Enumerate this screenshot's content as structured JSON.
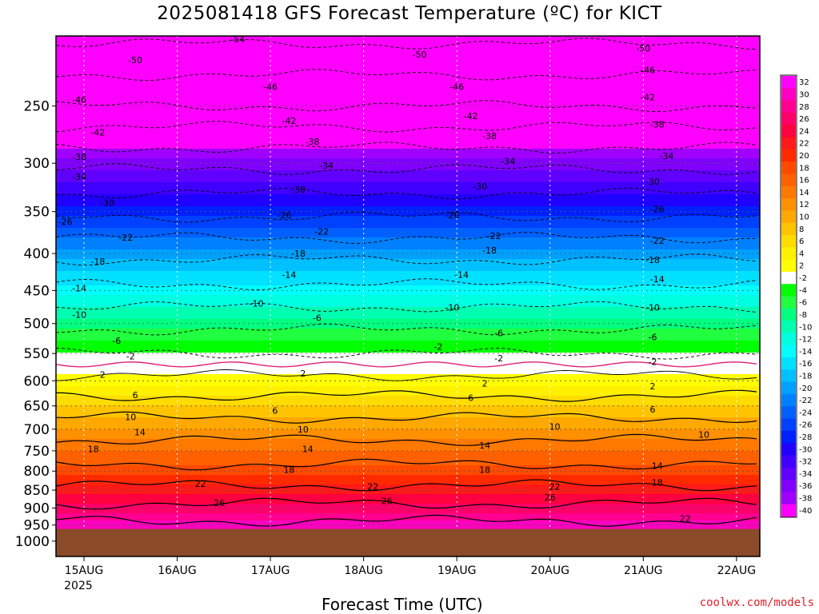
{
  "chart_data": {
    "type": "heatmap",
    "title": "2025081418 GFS Forecast Temperature (ºC) for KICT",
    "xlabel": "Forecast Time (UTC)",
    "ylabel": "",
    "credit": "coolwx.com/models",
    "x_ticks": [
      {
        "day": 0,
        "label": "15AUG",
        "sub": "2025"
      },
      {
        "day": 1,
        "label": "16AUG",
        "sub": ""
      },
      {
        "day": 2,
        "label": "17AUG",
        "sub": ""
      },
      {
        "day": 3,
        "label": "18AUG",
        "sub": ""
      },
      {
        "day": 4,
        "label": "19AUG",
        "sub": ""
      },
      {
        "day": 5,
        "label": "20AUG",
        "sub": ""
      },
      {
        "day": 6,
        "label": "21AUG",
        "sub": ""
      },
      {
        "day": 7,
        "label": "22AUG",
        "sub": ""
      }
    ],
    "xlim_days": [
      -0.3,
      7.25
    ],
    "y_ticks": [
      250,
      300,
      350,
      400,
      450,
      500,
      550,
      600,
      650,
      700,
      750,
      800,
      850,
      900,
      950,
      1000
    ],
    "ylim_hpa": [
      200,
      1050
    ],
    "y_scale": "log",
    "surface_pressure_hpa": 962,
    "surface_color": "#8b4a2a",
    "temperature_profile": {
      "pressure_hpa": [
        200,
        250,
        300,
        350,
        400,
        450,
        500,
        550,
        600,
        650,
        700,
        750,
        800,
        850,
        900,
        950
      ],
      "temp_c": [
        -55,
        -46,
        -35,
        -27,
        -19,
        -13,
        -7,
        -2,
        3,
        8,
        12,
        16,
        19,
        23,
        27,
        31
      ]
    },
    "colorbar": {
      "levels": [
        32,
        30,
        28,
        26,
        24,
        22,
        20,
        18,
        16,
        14,
        12,
        10,
        8,
        6,
        4,
        2,
        -2,
        -4,
        -6,
        -8,
        -10,
        -12,
        -14,
        -16,
        -18,
        -20,
        -22,
        -24,
        -26,
        -28,
        -30,
        -32,
        -34,
        -36,
        -38,
        -40
      ],
      "colors": [
        "#ff00ff",
        "#ff00c0",
        "#ff0090",
        "#ff0068",
        "#ff0040",
        "#ff1a1a",
        "#ff2a00",
        "#ff4a00",
        "#ff6000",
        "#ff7800",
        "#ff9000",
        "#ffa800",
        "#ffc400",
        "#ffdc00",
        "#fff000",
        "#ffff00",
        "#ffffff",
        "#00ff00",
        "#20ff40",
        "#00ff80",
        "#00ffb0",
        "#00ffe0",
        "#00ffff",
        "#00e0ff",
        "#00c0ff",
        "#00a0ff",
        "#0080ff",
        "#0060ff",
        "#0040ff",
        "#0020ff",
        "#2000ff",
        "#4000ff",
        "#6000ff",
        "#8000ff",
        "#a000ff",
        "#ff00ff"
      ]
    },
    "contour_labels": [
      {
        "t": "-54",
        "day": 1.65,
        "p": 202
      },
      {
        "t": "-50",
        "day": 0.55,
        "p": 216
      },
      {
        "t": "-50",
        "day": 3.6,
        "p": 212
      },
      {
        "t": "-50",
        "day": 6.0,
        "p": 208
      },
      {
        "t": "-46",
        "day": -0.05,
        "p": 245
      },
      {
        "t": "-46",
        "day": 2.0,
        "p": 235
      },
      {
        "t": "-46",
        "day": 4.0,
        "p": 235
      },
      {
        "t": "-46",
        "day": 6.05,
        "p": 223
      },
      {
        "t": "-42",
        "day": 0.15,
        "p": 272
      },
      {
        "t": "-42",
        "day": 2.2,
        "p": 262
      },
      {
        "t": "-42",
        "day": 4.15,
        "p": 258
      },
      {
        "t": "-42",
        "day": 6.05,
        "p": 243
      },
      {
        "t": "-38",
        "day": -0.05,
        "p": 294
      },
      {
        "t": "-38",
        "day": 2.45,
        "p": 280
      },
      {
        "t": "-38",
        "day": 4.35,
        "p": 275
      },
      {
        "t": "-38",
        "day": 6.15,
        "p": 265
      },
      {
        "t": "-34",
        "day": -0.05,
        "p": 313
      },
      {
        "t": "-34",
        "day": 2.6,
        "p": 302
      },
      {
        "t": "-34",
        "day": 4.55,
        "p": 298
      },
      {
        "t": "-34",
        "day": 6.25,
        "p": 293
      },
      {
        "t": "-30",
        "day": 0.25,
        "p": 340
      },
      {
        "t": "-30",
        "day": 2.3,
        "p": 326
      },
      {
        "t": "-30",
        "day": 4.25,
        "p": 323
      },
      {
        "t": "-30",
        "day": 6.1,
        "p": 318
      },
      {
        "t": "-26",
        "day": -0.2,
        "p": 361
      },
      {
        "t": "-26",
        "day": 2.15,
        "p": 354
      },
      {
        "t": "-26",
        "day": 3.95,
        "p": 354
      },
      {
        "t": "-26",
        "day": 6.15,
        "p": 347
      },
      {
        "t": "-22",
        "day": 0.45,
        "p": 380
      },
      {
        "t": "-22",
        "day": 2.55,
        "p": 373
      },
      {
        "t": "-22",
        "day": 4.4,
        "p": 378
      },
      {
        "t": "-22",
        "day": 6.15,
        "p": 384
      },
      {
        "t": "-18",
        "day": 0.15,
        "p": 410
      },
      {
        "t": "-18",
        "day": 2.3,
        "p": 400
      },
      {
        "t": "-18",
        "day": 4.35,
        "p": 396
      },
      {
        "t": "-18",
        "day": 6.1,
        "p": 408
      },
      {
        "t": "-14",
        "day": -0.05,
        "p": 447
      },
      {
        "t": "-14",
        "day": 2.2,
        "p": 428
      },
      {
        "t": "-14",
        "day": 4.05,
        "p": 428
      },
      {
        "t": "-14",
        "day": 6.15,
        "p": 434
      },
      {
        "t": "-10",
        "day": -0.05,
        "p": 486
      },
      {
        "t": "-10",
        "day": 1.85,
        "p": 469
      },
      {
        "t": "-10",
        "day": 3.95,
        "p": 475
      },
      {
        "t": "-10",
        "day": 6.1,
        "p": 475
      },
      {
        "t": "-6",
        "day": 0.35,
        "p": 528
      },
      {
        "t": "-6",
        "day": 2.5,
        "p": 491
      },
      {
        "t": "-6",
        "day": 4.45,
        "p": 515
      },
      {
        "t": "-6",
        "day": 6.1,
        "p": 522
      },
      {
        "t": "-2",
        "day": 0.5,
        "p": 555
      },
      {
        "t": "-2",
        "day": 3.8,
        "p": 538
      },
      {
        "t": "-2",
        "day": 4.45,
        "p": 558
      },
      {
        "t": "-2",
        "day": 6.1,
        "p": 565
      },
      {
        "t": "2",
        "day": 0.2,
        "p": 588
      },
      {
        "t": "2",
        "day": 2.35,
        "p": 586
      },
      {
        "t": "2",
        "day": 4.3,
        "p": 605
      },
      {
        "t": "2",
        "day": 6.1,
        "p": 610
      },
      {
        "t": "6",
        "day": 0.55,
        "p": 628
      },
      {
        "t": "6",
        "day": 2.05,
        "p": 660
      },
      {
        "t": "6",
        "day": 4.15,
        "p": 633
      },
      {
        "t": "6",
        "day": 6.1,
        "p": 657
      },
      {
        "t": "10",
        "day": 0.5,
        "p": 673
      },
      {
        "t": "10",
        "day": 2.35,
        "p": 700
      },
      {
        "t": "10",
        "day": 5.05,
        "p": 694
      },
      {
        "t": "10",
        "day": 6.65,
        "p": 712
      },
      {
        "t": "14",
        "day": 0.6,
        "p": 707
      },
      {
        "t": "14",
        "day": 2.4,
        "p": 745
      },
      {
        "t": "14",
        "day": 4.3,
        "p": 737
      },
      {
        "t": "14",
        "day": 6.15,
        "p": 786
      },
      {
        "t": "18",
        "day": 0.1,
        "p": 745
      },
      {
        "t": "18",
        "day": 2.2,
        "p": 796
      },
      {
        "t": "18",
        "day": 4.3,
        "p": 796
      },
      {
        "t": "18",
        "day": 6.15,
        "p": 830
      },
      {
        "t": "22",
        "day": 1.25,
        "p": 833
      },
      {
        "t": "22",
        "day": 3.1,
        "p": 840
      },
      {
        "t": "22",
        "day": 5.05,
        "p": 840
      },
      {
        "t": "22",
        "day": 6.45,
        "p": 930
      },
      {
        "t": "26",
        "day": 1.45,
        "p": 885
      },
      {
        "t": "26",
        "day": 3.25,
        "p": 880
      },
      {
        "t": "26",
        "day": 5.0,
        "p": 870
      },
      {
        "t": "30",
        "day": 4.2,
        "p": 955
      }
    ]
  }
}
